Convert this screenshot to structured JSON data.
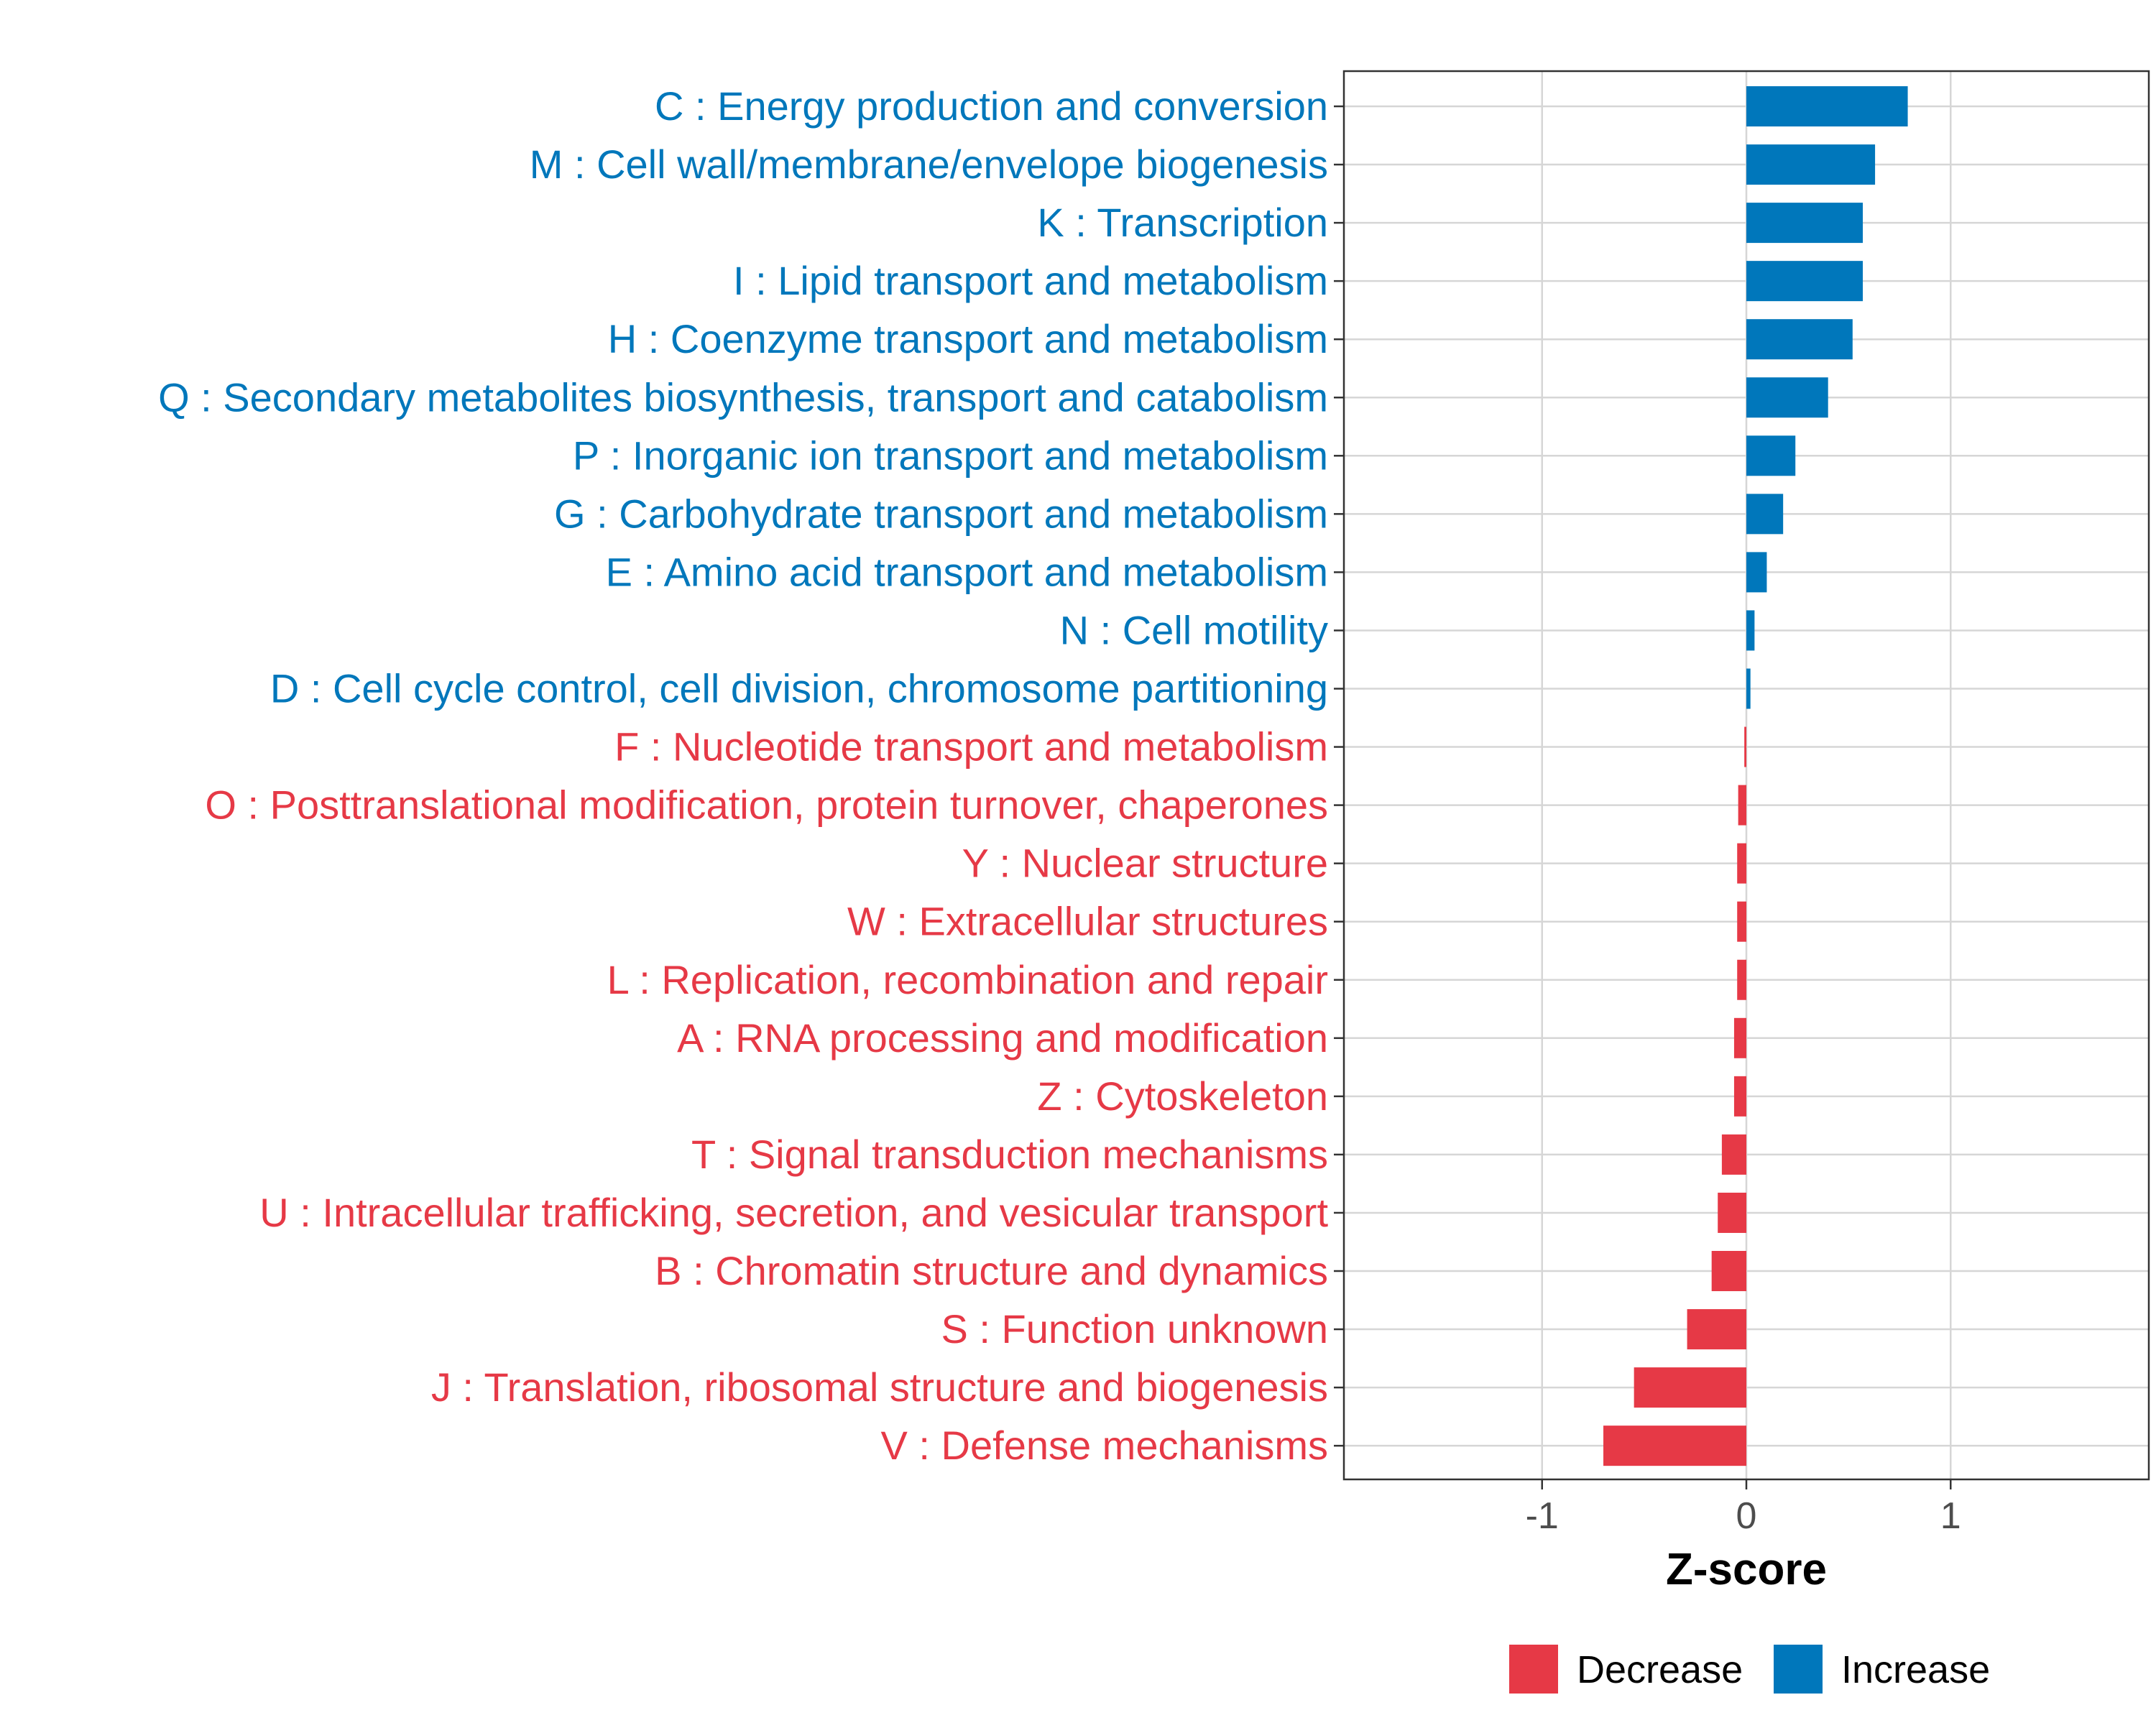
{
  "chart_data": {
    "type": "bar",
    "orientation": "horizontal",
    "title": "",
    "xlabel": "Z-score",
    "ylabel": "",
    "xlim": [
      -1.97,
      1.97
    ],
    "xticks": [
      -1,
      0,
      1
    ],
    "xtick_labels": [
      "-1",
      "0",
      "1"
    ],
    "grid": true,
    "legend_position": "bottom",
    "colors": {
      "Decrease": "#E63946",
      "Increase": "#0077BB"
    },
    "legend": [
      {
        "name": "Decrease",
        "color": "#E63946"
      },
      {
        "name": "Increase",
        "color": "#0077BB"
      }
    ],
    "categories": [
      "C : Energy production and conversion",
      "M : Cell wall/membrane/envelope biogenesis",
      "K : Transcription",
      "I : Lipid transport and metabolism",
      "H : Coenzyme transport and metabolism",
      "Q : Secondary metabolites biosynthesis, transport and catabolism",
      "P : Inorganic ion transport and metabolism",
      "G : Carbohydrate transport and metabolism",
      "E : Amino acid transport and metabolism",
      "N : Cell motility",
      "D : Cell cycle control, cell division, chromosome partitioning",
      "F : Nucleotide transport and metabolism",
      "O : Posttranslational modification, protein turnover, chaperones",
      "Y : Nuclear structure",
      "W : Extracellular structures",
      "L : Replication, recombination and repair",
      "A : RNA processing and modification",
      "Z : Cytoskeleton",
      "T : Signal transduction mechanisms",
      "U : Intracellular trafficking, secretion, and vesicular transport",
      "B : Chromatin structure and dynamics",
      "S : Function unknown",
      "J : Translation, ribosomal structure and biogenesis",
      "V : Defense mechanisms"
    ],
    "values": [
      0.79,
      0.63,
      0.57,
      0.57,
      0.52,
      0.4,
      0.24,
      0.18,
      0.1,
      0.04,
      0.02,
      -0.01,
      -0.04,
      -0.045,
      -0.045,
      -0.045,
      -0.06,
      -0.06,
      -0.12,
      -0.14,
      -0.17,
      -0.29,
      -0.55,
      -0.7
    ],
    "groups": [
      "Increase",
      "Increase",
      "Increase",
      "Increase",
      "Increase",
      "Increase",
      "Increase",
      "Increase",
      "Increase",
      "Increase",
      "Increase",
      "Decrease",
      "Decrease",
      "Decrease",
      "Decrease",
      "Decrease",
      "Decrease",
      "Decrease",
      "Decrease",
      "Decrease",
      "Decrease",
      "Decrease",
      "Decrease",
      "Decrease"
    ]
  }
}
